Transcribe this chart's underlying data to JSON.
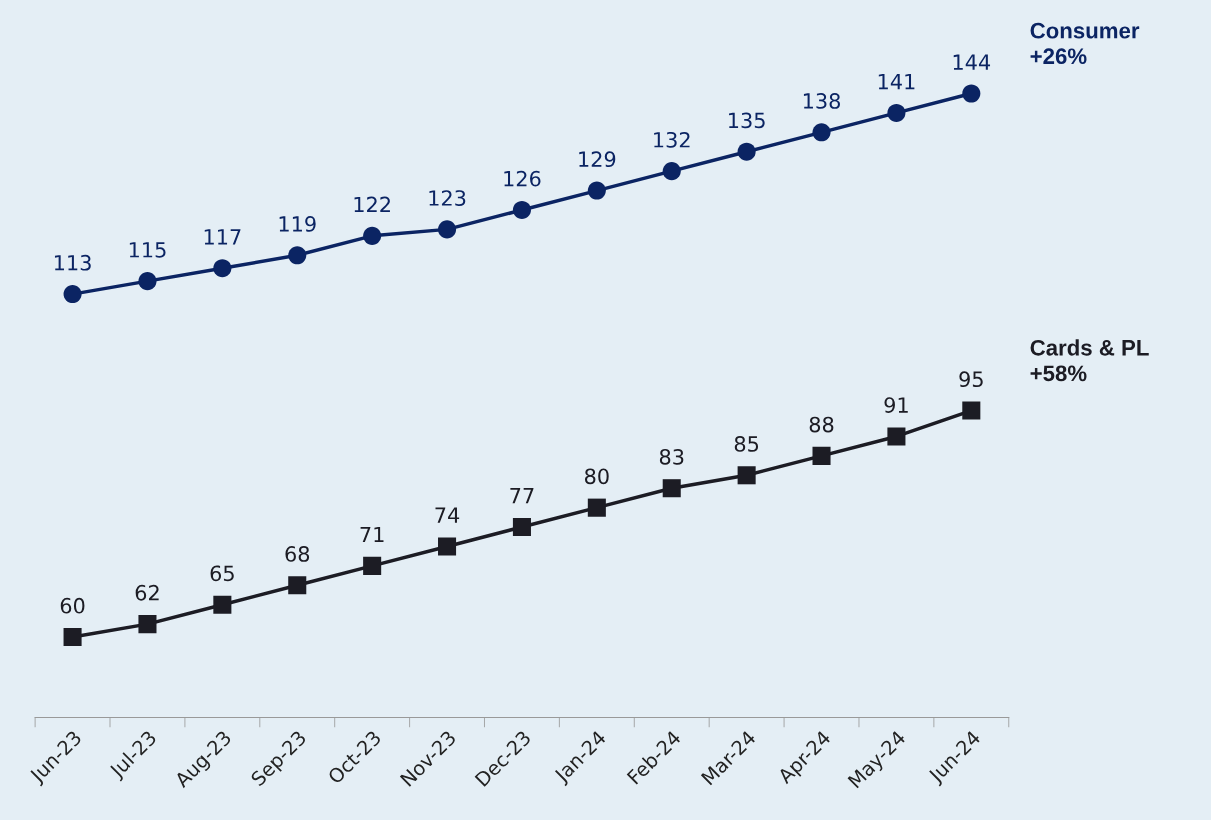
{
  "chart_data": {
    "type": "line",
    "categories": [
      "Jun-23",
      "Jul-23",
      "Aug-23",
      "Sep-23",
      "Oct-23",
      "Nov-23",
      "Dec-23",
      "Jan-24",
      "Feb-24",
      "Mar-24",
      "Apr-24",
      "May-24",
      "Jun-24"
    ],
    "series": [
      {
        "name": "Consumer",
        "color": "#0b2463",
        "marker": "circle",
        "values": [
          113,
          115,
          117,
          119,
          122,
          123,
          126,
          129,
          132,
          135,
          138,
          141,
          144
        ]
      },
      {
        "name": "Cards & PL",
        "color": "#1c1c24",
        "marker": "square",
        "values": [
          60,
          62,
          65,
          68,
          71,
          74,
          77,
          80,
          83,
          85,
          88,
          91,
          95
        ]
      }
    ],
    "annotations": [
      "+26%",
      "+58%"
    ],
    "data_labels": true,
    "grid": false,
    "legend": false,
    "line_style": "solid"
  }
}
